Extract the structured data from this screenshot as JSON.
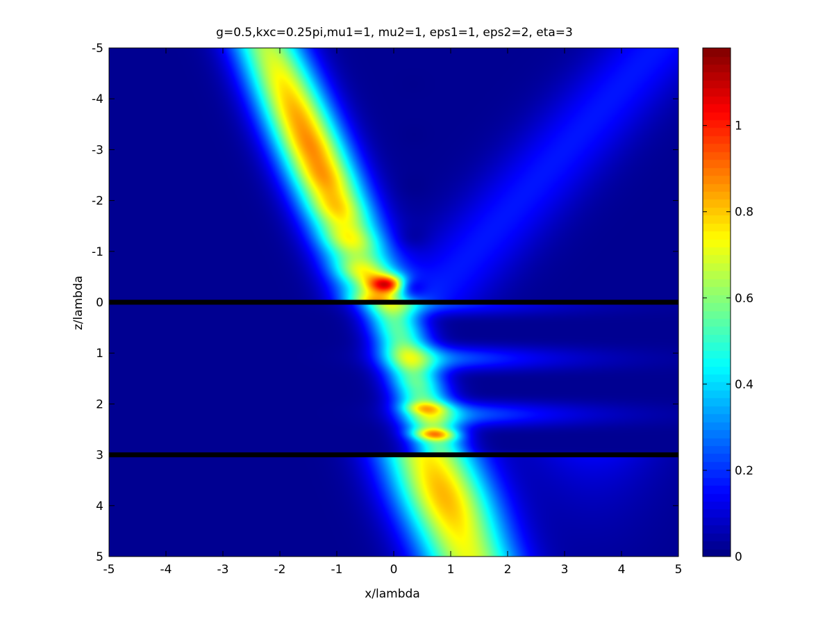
{
  "chart_data": {
    "type": "heatmap",
    "title": "g=0.5,kxc=0.25pi,mu1=1, mu2=1, eps1=1, eps2=2, eta=3",
    "xlabel": "x/lambda",
    "ylabel": "z/lambda",
    "xlim": [
      -5,
      5
    ],
    "ylim": [
      -5,
      5
    ],
    "y_axis_reversed": true,
    "x_ticks": [
      -5,
      -4,
      -3,
      -2,
      -1,
      0,
      1,
      2,
      3,
      4,
      5
    ],
    "x_tick_labels": [
      "-5",
      "-4",
      "-3",
      "-2",
      "-1",
      "0",
      "1",
      "2",
      "3",
      "4",
      "5"
    ],
    "y_ticks": [
      -5,
      -4,
      -3,
      -2,
      -1,
      0,
      1,
      2,
      3,
      4,
      5
    ],
    "y_tick_labels": [
      "-5",
      "-4",
      "-3",
      "-2",
      "-1",
      "0",
      "1",
      "2",
      "3",
      "4",
      "5"
    ],
    "colormap": "jet",
    "colorbar": {
      "range": [
        0,
        1.18
      ],
      "ticks": [
        0,
        0.2,
        0.4,
        0.6,
        0.8,
        1
      ],
      "tick_labels": [
        "0",
        "0.2",
        "0.4",
        "0.6",
        "0.8",
        "1"
      ]
    },
    "interfaces_z": [
      0,
      3
    ],
    "features": {
      "incident_beam": {
        "z_start": -5,
        "x_start": -2.2,
        "z_end": 0,
        "x_end": -0.3,
        "peak_value": 0.85
      },
      "hotspot": {
        "x": -0.1,
        "z": -0.35,
        "value": 1.18
      },
      "reflected_beam": {
        "z_start": 0,
        "x_start": 0.6,
        "z_end": -5,
        "x_end": 4.6,
        "peak_value": 0.15
      },
      "slab_beam": {
        "z_start": 0,
        "x_start": -0.1,
        "z_end": 3,
        "x_end": 0.85,
        "peak_value": 0.75
      },
      "transmitted_beam": {
        "z_start": 3,
        "x_start": 0.6,
        "z_end": 5,
        "x_end": 1.3,
        "peak_value": 0.8
      }
    },
    "grid": false,
    "legend": "none"
  }
}
